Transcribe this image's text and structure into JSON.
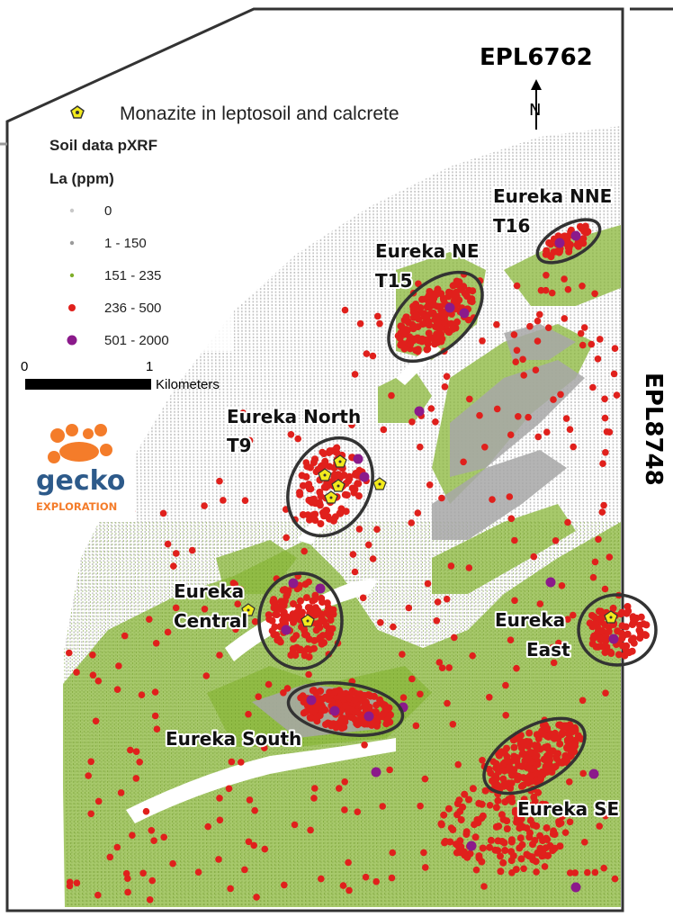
{
  "tenements": {
    "north": "EPL6762",
    "east": "EPL8748"
  },
  "north_arrow_letter": "N",
  "monazite_legend": "Monazite in leptosoil and calcrete",
  "legend": {
    "title": "Soil data pXRF",
    "subtitle": "La (ppm)",
    "classes": [
      {
        "label": "0",
        "color": "#c8c8c8"
      },
      {
        "label": "1 - 150",
        "color": "#9a9a9a"
      },
      {
        "label": "151 - 235",
        "color": "#7fae2a"
      },
      {
        "label": "236 - 500",
        "color": "#e0201c"
      },
      {
        "label": "501 - 2000",
        "color": "#8b1a8b"
      }
    ]
  },
  "scale_bar": {
    "start": "0",
    "end": "1",
    "unit": "Kilometers"
  },
  "logo": {
    "name": "gecko",
    "tagline": "EXPLORATION",
    "colors": {
      "icon": "#f47c2a",
      "text": "#2d5a8a"
    }
  },
  "targets": [
    {
      "id": "nne",
      "lines": [
        "Eureka NNE",
        "T16"
      ]
    },
    {
      "id": "ne",
      "lines": [
        "Eureka NE",
        "T15"
      ]
    },
    {
      "id": "north",
      "lines": [
        "Eureka North",
        "T9"
      ]
    },
    {
      "id": "central",
      "lines": [
        "Eureka",
        "Central"
      ]
    },
    {
      "id": "east",
      "lines": [
        "Eureka",
        "East"
      ]
    },
    {
      "id": "south",
      "lines": [
        "Eureka South"
      ]
    },
    {
      "id": "se",
      "lines": [
        "Eureka SE"
      ]
    }
  ],
  "monazite_symbol_color": "#f2ea1c",
  "boundary_color": "#333333"
}
